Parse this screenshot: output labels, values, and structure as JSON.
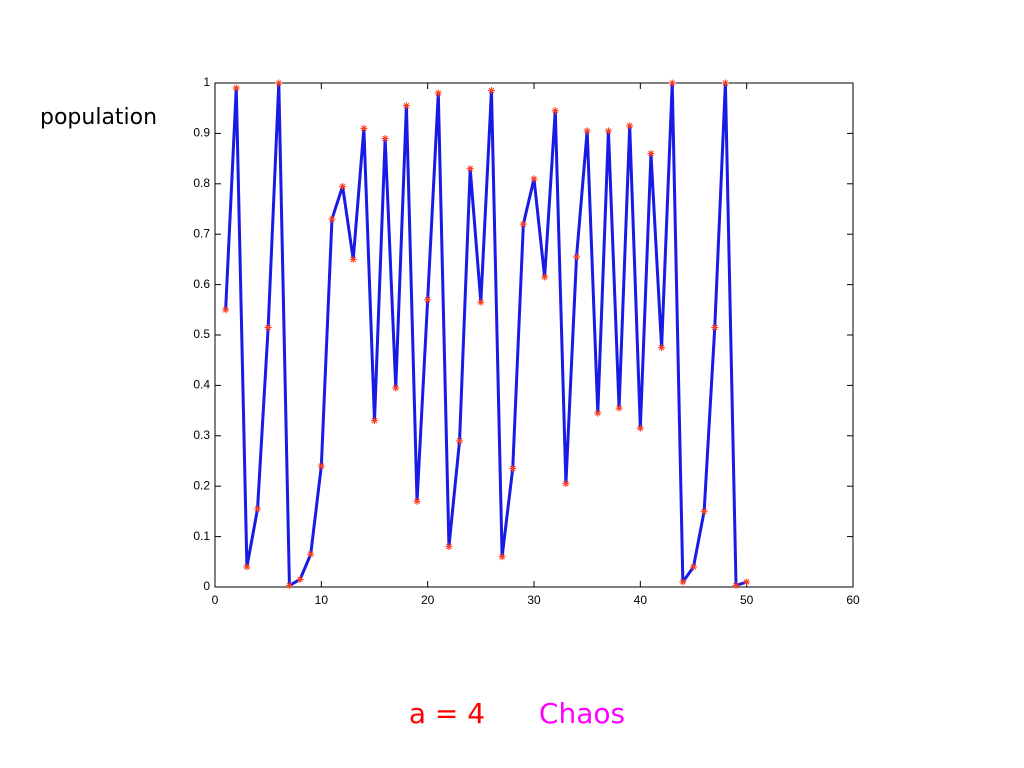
{
  "chart_data": {
    "type": "line",
    "ylabel": "population",
    "x": [
      1,
      2,
      3,
      4,
      5,
      6,
      7,
      8,
      9,
      10,
      11,
      12,
      13,
      14,
      15,
      16,
      17,
      18,
      19,
      20,
      21,
      22,
      23,
      24,
      25,
      26,
      27,
      28,
      29,
      30,
      31,
      32,
      33,
      34,
      35,
      36,
      37,
      38,
      39,
      40,
      41,
      42,
      43,
      44,
      45,
      46,
      47,
      48,
      49,
      50
    ],
    "values": [
      0.55,
      0.99,
      0.04,
      0.155,
      0.515,
      1.0,
      0.003,
      0.015,
      0.065,
      0.24,
      0.73,
      0.795,
      0.65,
      0.91,
      0.33,
      0.89,
      0.395,
      0.955,
      0.17,
      0.57,
      0.98,
      0.08,
      0.29,
      0.83,
      0.565,
      0.985,
      0.06,
      0.235,
      0.72,
      0.81,
      0.615,
      0.945,
      0.205,
      0.655,
      0.905,
      0.345,
      0.905,
      0.355,
      0.915,
      0.315,
      0.86,
      0.475,
      1.0,
      0.01,
      0.04,
      0.15,
      0.515,
      1.0,
      0.003,
      0.01
    ],
    "color": "#1a1ae6",
    "marker_color": "#ff3b1a",
    "marker": "*",
    "xlim": [
      0,
      60
    ],
    "xticks": [
      0,
      10,
      20,
      30,
      40,
      50,
      60
    ],
    "ylim": [
      0,
      1
    ],
    "yticks": [
      0,
      0.1,
      0.2,
      0.3,
      0.4,
      0.5,
      0.6,
      0.7,
      0.8,
      0.9,
      1
    ],
    "annotations": [
      {
        "text": "a = 4",
        "color": "#ff0000"
      },
      {
        "text": "Chaos",
        "color": "#ff00ff"
      }
    ]
  }
}
